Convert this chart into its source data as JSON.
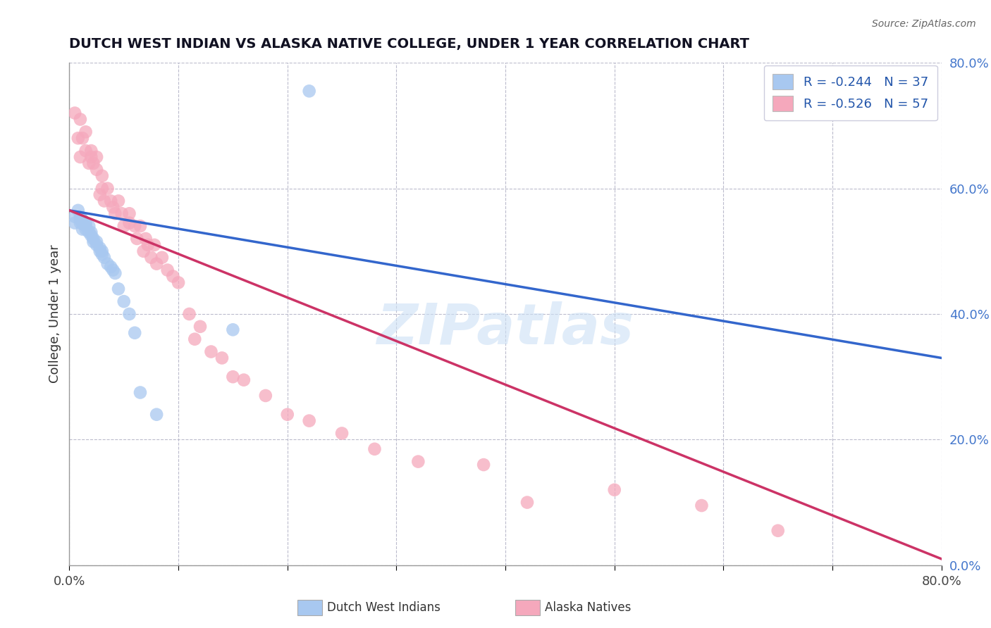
{
  "title": "DUTCH WEST INDIAN VS ALASKA NATIVE COLLEGE, UNDER 1 YEAR CORRELATION CHART",
  "source_text": "Source: ZipAtlas.com",
  "ylabel": "College, Under 1 year",
  "xlabel": "",
  "legend_label_blue": "Dutch West Indians",
  "legend_label_pink": "Alaska Natives",
  "R_blue": -0.244,
  "N_blue": 37,
  "R_pink": -0.526,
  "N_pink": 57,
  "color_blue": "#a8c8f0",
  "color_pink": "#f5a8bc",
  "line_color_blue": "#3366cc",
  "line_color_pink": "#cc3366",
  "xlim": [
    0.0,
    0.8
  ],
  "ylim": [
    0.0,
    0.8
  ],
  "xticks": [
    0.0,
    0.1,
    0.2,
    0.3,
    0.4,
    0.5,
    0.6,
    0.7,
    0.8
  ],
  "yticks": [
    0.0,
    0.2,
    0.4,
    0.6,
    0.8
  ],
  "background_color": "#ffffff",
  "watermark": "ZIPatlas",
  "blue_line_x0": 0.0,
  "blue_line_y0": 0.565,
  "blue_line_x1": 0.8,
  "blue_line_y1": 0.33,
  "pink_line_x0": 0.0,
  "pink_line_y0": 0.565,
  "pink_line_x1": 0.8,
  "pink_line_y1": 0.01,
  "blue_points_x": [
    0.005,
    0.005,
    0.008,
    0.01,
    0.01,
    0.01,
    0.012,
    0.012,
    0.012,
    0.015,
    0.015,
    0.015,
    0.018,
    0.018,
    0.02,
    0.02,
    0.022,
    0.022,
    0.025,
    0.025,
    0.028,
    0.028,
    0.03,
    0.03,
    0.032,
    0.035,
    0.038,
    0.04,
    0.042,
    0.045,
    0.05,
    0.055,
    0.06,
    0.065,
    0.08,
    0.15,
    0.22
  ],
  "blue_points_y": [
    0.555,
    0.545,
    0.565,
    0.555,
    0.55,
    0.545,
    0.55,
    0.545,
    0.535,
    0.54,
    0.535,
    0.545,
    0.53,
    0.54,
    0.53,
    0.525,
    0.515,
    0.52,
    0.51,
    0.515,
    0.5,
    0.505,
    0.495,
    0.5,
    0.49,
    0.48,
    0.475,
    0.47,
    0.465,
    0.44,
    0.42,
    0.4,
    0.37,
    0.275,
    0.24,
    0.375,
    0.755
  ],
  "pink_points_x": [
    0.005,
    0.008,
    0.01,
    0.01,
    0.012,
    0.015,
    0.015,
    0.018,
    0.02,
    0.02,
    0.022,
    0.025,
    0.025,
    0.028,
    0.03,
    0.03,
    0.032,
    0.035,
    0.038,
    0.04,
    0.042,
    0.045,
    0.048,
    0.05,
    0.055,
    0.055,
    0.06,
    0.062,
    0.065,
    0.068,
    0.07,
    0.072,
    0.075,
    0.078,
    0.08,
    0.085,
    0.09,
    0.095,
    0.1,
    0.11,
    0.115,
    0.12,
    0.13,
    0.14,
    0.15,
    0.16,
    0.18,
    0.2,
    0.22,
    0.25,
    0.28,
    0.32,
    0.38,
    0.42,
    0.5,
    0.58,
    0.65
  ],
  "pink_points_y": [
    0.72,
    0.68,
    0.71,
    0.65,
    0.68,
    0.66,
    0.69,
    0.64,
    0.65,
    0.66,
    0.64,
    0.63,
    0.65,
    0.59,
    0.62,
    0.6,
    0.58,
    0.6,
    0.58,
    0.57,
    0.56,
    0.58,
    0.56,
    0.54,
    0.545,
    0.56,
    0.54,
    0.52,
    0.54,
    0.5,
    0.52,
    0.51,
    0.49,
    0.51,
    0.48,
    0.49,
    0.47,
    0.46,
    0.45,
    0.4,
    0.36,
    0.38,
    0.34,
    0.33,
    0.3,
    0.295,
    0.27,
    0.24,
    0.23,
    0.21,
    0.185,
    0.165,
    0.16,
    0.1,
    0.12,
    0.095,
    0.055
  ]
}
